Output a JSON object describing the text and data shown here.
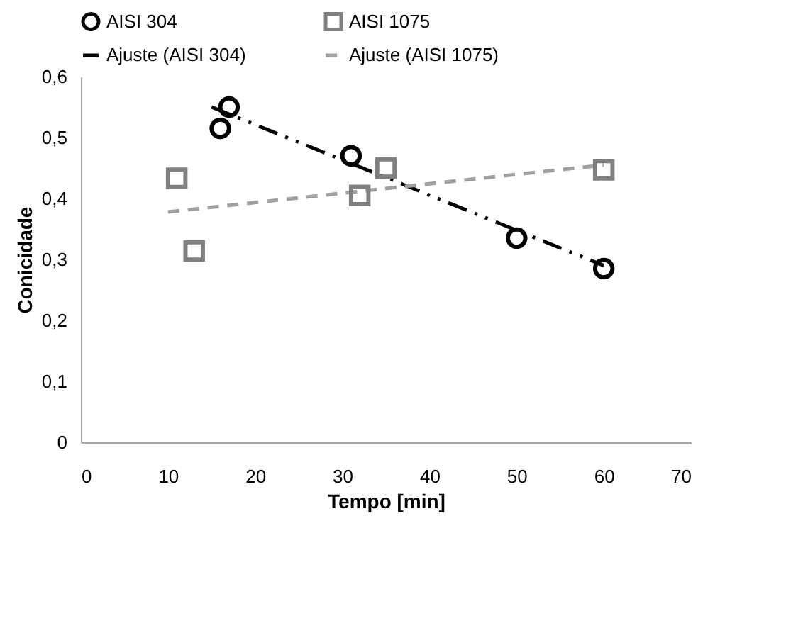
{
  "chart_data": {
    "type": "scatter",
    "xlabel": "Tempo [min]",
    "ylabel": "Conicidade",
    "xlim": [
      0,
      70
    ],
    "ylim": [
      0,
      0.6
    ],
    "xticks": [
      0,
      10,
      20,
      30,
      40,
      50,
      60,
      70
    ],
    "yticks": [
      0,
      {
        "value": 0.1,
        "label": "0,1"
      },
      {
        "value": 0.2,
        "label": "0,2"
      },
      {
        "value": 0.3,
        "label": "0,3"
      },
      {
        "value": 0.4,
        "label": "0,4"
      },
      {
        "value": 0.5,
        "label": "0,5"
      },
      {
        "value": 0.6,
        "label": "0,6"
      }
    ],
    "grid": false,
    "legend": "top",
    "series": [
      {
        "name": "AISI 304",
        "type": "scatter",
        "marker": "circle",
        "color": "#000000",
        "x": [
          16,
          17,
          31,
          50,
          60
        ],
        "values": [
          0.515,
          0.55,
          0.47,
          0.335,
          0.285
        ]
      },
      {
        "name": "AISI 1075",
        "type": "scatter",
        "marker": "square",
        "color": "#808080",
        "x": [
          11,
          13,
          32,
          35,
          60
        ],
        "values": [
          0.433,
          0.314,
          0.405,
          0.45,
          0.447
        ]
      },
      {
        "name": "Ajuste (AISI 304)",
        "type": "line",
        "line_style": "dashdot",
        "color": "#000000",
        "x": [
          15,
          60
        ],
        "values": [
          0.55,
          0.29
        ]
      },
      {
        "name": "Ajuste (AISI 1075)",
        "type": "line",
        "line_style": "dashed",
        "color": "#a0a0a0",
        "x": [
          10,
          60
        ],
        "values": [
          0.378,
          0.455
        ]
      }
    ]
  }
}
